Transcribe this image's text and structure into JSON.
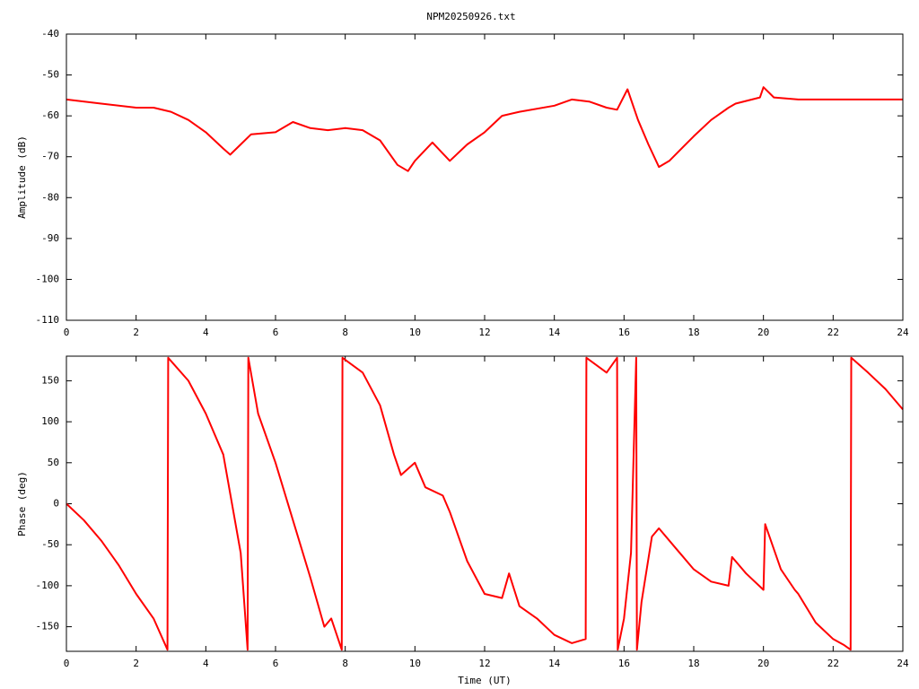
{
  "chart_data": [
    {
      "type": "line",
      "title": "NPM20250926.txt",
      "y_label": "Amplitude (dB)",
      "xlim": [
        0,
        24
      ],
      "xticks": [
        0,
        2,
        4,
        6,
        8,
        10,
        12,
        14,
        16,
        18,
        20,
        22,
        24
      ],
      "ylim": [
        -110,
        -40
      ],
      "yticks": [
        -110,
        -100,
        -90,
        -80,
        -70,
        -60,
        -50,
        -40
      ],
      "grid": false,
      "series": [
        {
          "name": null,
          "color": "#ff0000",
          "x": [
            0,
            1,
            2,
            2.5,
            3,
            3.5,
            4,
            4.5,
            4.7,
            5,
            5.3,
            6,
            6.5,
            7,
            7.5,
            8,
            8.5,
            9,
            9.5,
            9.8,
            10,
            10.5,
            11,
            11.5,
            12,
            12.5,
            13,
            14,
            14.5,
            15,
            15.5,
            15.8,
            16.1,
            16.4,
            16.7,
            17,
            17.3,
            18,
            18.5,
            19,
            19.2,
            19.9,
            20,
            20.3,
            21,
            22,
            23,
            24
          ],
          "values": [
            -56,
            -57,
            -58,
            -58,
            -59,
            -61,
            -64,
            -68,
            -69.5,
            -67,
            -64.5,
            -64,
            -61.5,
            -63,
            -63.5,
            -63,
            -63.5,
            -66,
            -72,
            -73.5,
            -71,
            -66.5,
            -71,
            -67,
            -64,
            -60,
            -59,
            -57.5,
            -56,
            -56.5,
            -58,
            -58.5,
            -53.5,
            -61,
            -67,
            -72.5,
            -71,
            -65,
            -61,
            -58,
            -57,
            -55.5,
            -53,
            -55.5,
            -56,
            -56,
            -56,
            -56
          ]
        }
      ]
    },
    {
      "type": "line",
      "x_label": "Time (UT)",
      "y_label": "Phase (deg)",
      "xlim": [
        0,
        24
      ],
      "xticks": [
        0,
        2,
        4,
        6,
        8,
        10,
        12,
        14,
        16,
        18,
        20,
        22,
        24
      ],
      "ylim": [
        -180,
        180
      ],
      "yticks": [
        -150,
        -100,
        -50,
        0,
        50,
        100,
        150
      ],
      "grid": false,
      "series": [
        {
          "name": null,
          "color": "#ff0000",
          "x": [
            0,
            0.5,
            1,
            1.5,
            2,
            2.5,
            2.9,
            2.92,
            3.5,
            4,
            4.5,
            5,
            5.2,
            5.22,
            5.5,
            6,
            6.5,
            7,
            7.4,
            7.6,
            7.9,
            7.92,
            8.5,
            9,
            9.4,
            9.6,
            10,
            10.3,
            10.8,
            11,
            11.5,
            12,
            12.5,
            12.7,
            13,
            13.5,
            14,
            14.5,
            14.9,
            14.92,
            15.5,
            15.8,
            15.82,
            16,
            16.2,
            16.35,
            16.37,
            16.5,
            16.8,
            17,
            17.5,
            18,
            18.5,
            19,
            19.1,
            19.5,
            20,
            20.05,
            20.5,
            20.9,
            21,
            21.5,
            22,
            22.3,
            22.5,
            22.52,
            23,
            23.5,
            24
          ],
          "values": [
            0,
            -20,
            -45,
            -75,
            -110,
            -140,
            -178,
            178,
            150,
            110,
            60,
            -60,
            -178,
            178,
            110,
            50,
            -20,
            -90,
            -150,
            -140,
            -178,
            178,
            160,
            120,
            60,
            35,
            50,
            20,
            10,
            -10,
            -70,
            -110,
            -115,
            -85,
            -125,
            -140,
            -160,
            -170,
            -165,
            178,
            160,
            178,
            -178,
            -140,
            -60,
            178,
            -178,
            -120,
            -40,
            -30,
            -55,
            -80,
            -95,
            -100,
            -65,
            -85,
            -105,
            -25,
            -80,
            -105,
            -110,
            -145,
            -165,
            -172,
            -178,
            178,
            160,
            140,
            115
          ]
        }
      ]
    }
  ]
}
